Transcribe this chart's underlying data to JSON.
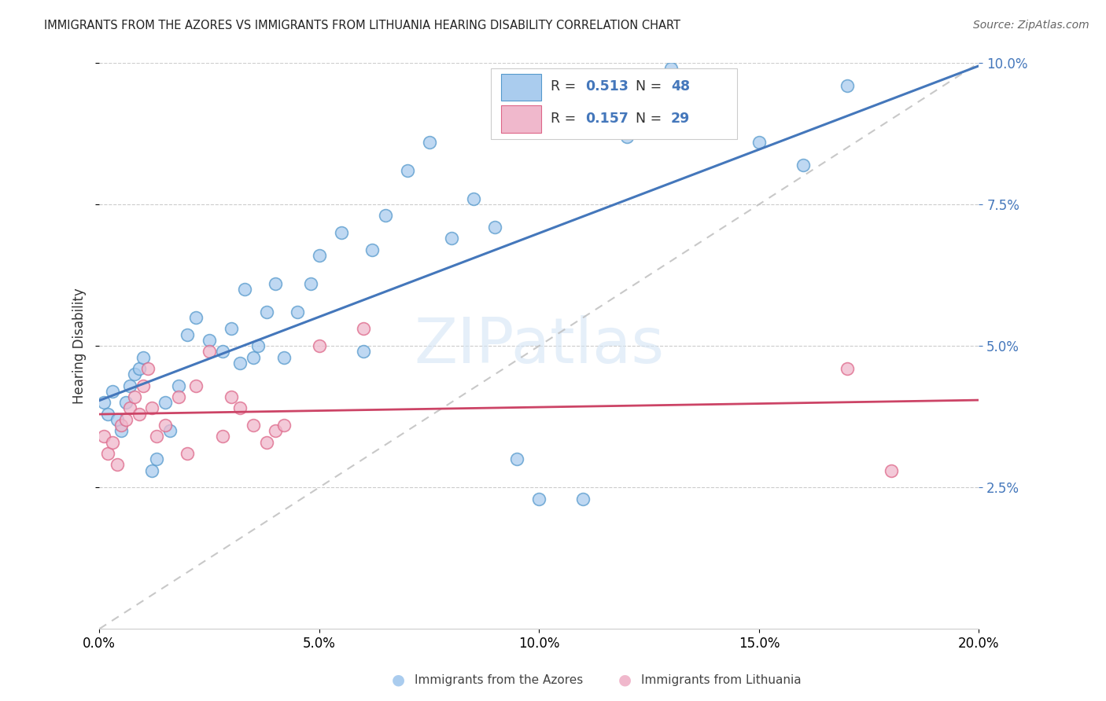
{
  "title": "IMMIGRANTS FROM THE AZORES VS IMMIGRANTS FROM LITHUANIA HEARING DISABILITY CORRELATION CHART",
  "source": "Source: ZipAtlas.com",
  "ylabel": "Hearing Disability",
  "legend_bottom": [
    "Immigrants from the Azores",
    "Immigrants from Lithuania"
  ],
  "xlim": [
    0.0,
    0.2
  ],
  "ylim": [
    0.0,
    0.1
  ],
  "R_azores": 0.513,
  "N_azores": 48,
  "R_lithuania": 0.157,
  "N_lithuania": 29,
  "color_azores_fill": "#aaccee",
  "color_azores_edge": "#5599cc",
  "color_lithuania_fill": "#f0b8cc",
  "color_lithuania_edge": "#dd6688",
  "line_color_azores": "#4477bb",
  "line_color_lithuania": "#cc4466",
  "line_color_diagonal": "#bbbbbb",
  "watermark_color": "#d5e5f5",
  "azores_x": [
    0.001,
    0.002,
    0.003,
    0.004,
    0.005,
    0.006,
    0.007,
    0.008,
    0.009,
    0.01,
    0.012,
    0.013,
    0.015,
    0.016,
    0.018,
    0.02,
    0.022,
    0.025,
    0.028,
    0.03,
    0.032,
    0.033,
    0.035,
    0.036,
    0.038,
    0.04,
    0.042,
    0.045,
    0.048,
    0.05,
    0.055,
    0.06,
    0.062,
    0.065,
    0.07,
    0.075,
    0.08,
    0.085,
    0.09,
    0.095,
    0.1,
    0.11,
    0.12,
    0.13,
    0.14,
    0.15,
    0.16,
    0.17
  ],
  "azores_y": [
    0.04,
    0.038,
    0.042,
    0.037,
    0.035,
    0.04,
    0.043,
    0.045,
    0.046,
    0.048,
    0.028,
    0.03,
    0.04,
    0.035,
    0.043,
    0.052,
    0.055,
    0.051,
    0.049,
    0.053,
    0.047,
    0.06,
    0.048,
    0.05,
    0.056,
    0.061,
    0.048,
    0.056,
    0.061,
    0.066,
    0.07,
    0.049,
    0.067,
    0.073,
    0.081,
    0.086,
    0.069,
    0.076,
    0.071,
    0.03,
    0.023,
    0.023,
    0.087,
    0.099,
    0.096,
    0.086,
    0.082,
    0.096
  ],
  "lithuania_x": [
    0.001,
    0.002,
    0.003,
    0.004,
    0.005,
    0.006,
    0.007,
    0.008,
    0.009,
    0.01,
    0.011,
    0.012,
    0.013,
    0.015,
    0.018,
    0.02,
    0.022,
    0.025,
    0.028,
    0.03,
    0.032,
    0.035,
    0.038,
    0.04,
    0.042,
    0.05,
    0.06,
    0.17,
    0.18
  ],
  "lithuania_y": [
    0.034,
    0.031,
    0.033,
    0.029,
    0.036,
    0.037,
    0.039,
    0.041,
    0.038,
    0.043,
    0.046,
    0.039,
    0.034,
    0.036,
    0.041,
    0.031,
    0.043,
    0.049,
    0.034,
    0.041,
    0.039,
    0.036,
    0.033,
    0.035,
    0.036,
    0.05,
    0.053,
    0.046,
    0.028
  ]
}
